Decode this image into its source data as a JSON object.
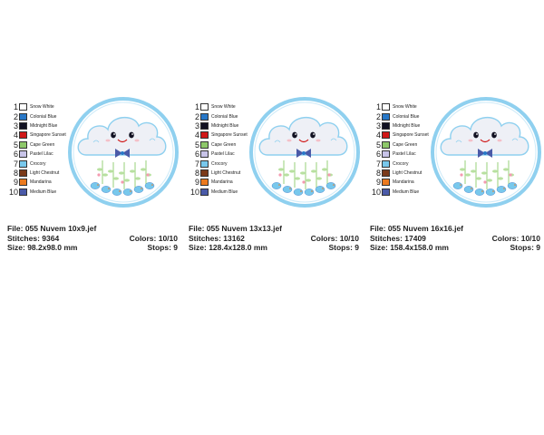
{
  "palette": [
    {
      "num": "1",
      "name": "Snow White",
      "color": "#ffffff"
    },
    {
      "num": "2",
      "name": "Colonial Blue",
      "color": "#2878c8"
    },
    {
      "num": "3",
      "name": "Midnight Blue",
      "color": "#111122"
    },
    {
      "num": "4",
      "name": "Singapore Sunset",
      "color": "#d01818"
    },
    {
      "num": "5",
      "name": "Cape Green",
      "color": "#8ec86a"
    },
    {
      "num": "6",
      "name": "Pastel Lilac",
      "color": "#c8c4e8"
    },
    {
      "num": "7",
      "name": "Crocory",
      "color": "#78c8ec"
    },
    {
      "num": "8",
      "name": "Light Chestnut",
      "color": "#7a3a1a"
    },
    {
      "num": "9",
      "name": "Mandarina",
      "color": "#ec7a1e"
    },
    {
      "num": "10",
      "name": "Medium Blue",
      "color": "#4a5aa8"
    }
  ],
  "panels": [
    {
      "file": "File: 055 Nuvem 10x9.jef",
      "stitches": "Stitches: 9364",
      "size": "Size: 98.2x98.0 mm",
      "colors": "Colors: 10/10",
      "stops": "Stops: 9"
    },
    {
      "file": "File: 055 Nuvem 13x13.jef",
      "stitches": "Stitches: 13162",
      "size": "Size: 128.4x128.0 mm",
      "colors": "Colors: 10/10",
      "stops": "Stops: 9"
    },
    {
      "file": "File: 055 Nuvem 16x16.jef",
      "stitches": "Stitches: 17409",
      "size": "Size: 158.4x158.0 mm",
      "colors": "Colors: 10/10",
      "stops": "Stops: 9"
    }
  ]
}
